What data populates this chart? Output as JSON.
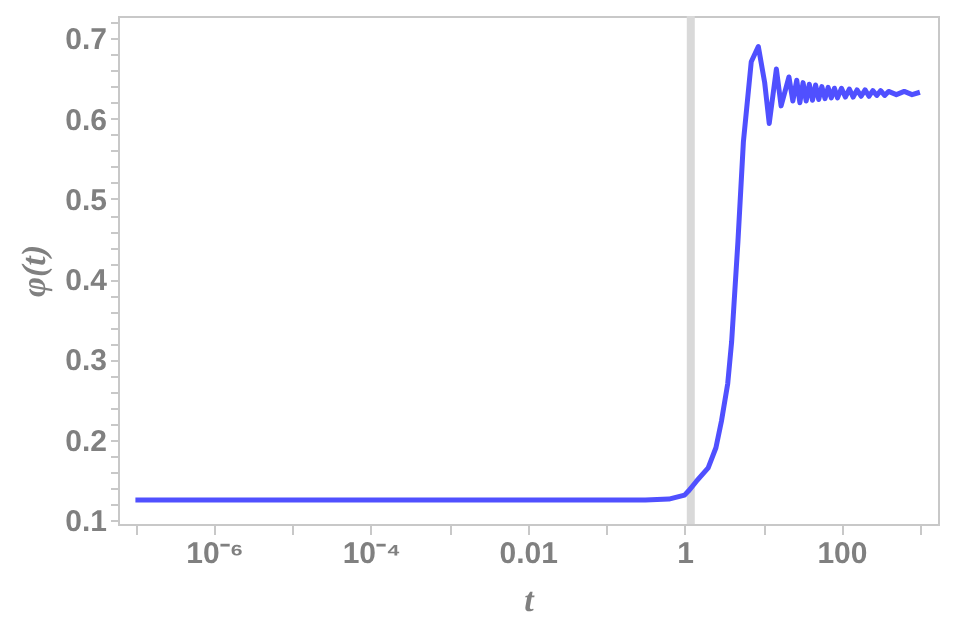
{
  "chart_data": {
    "type": "line",
    "xlabel": "t",
    "ylabel": "φ(t)",
    "log": "x",
    "x": [
      1e-07,
      1e-05,
      0.001,
      0.1,
      0.316,
      0.631,
      1,
      1.12,
      1.41,
      2.0,
      2.51,
      2.95,
      3.55,
      3.98,
      4.79,
      5.62,
      7.08,
      8.71,
      10.5,
      12.0,
      14.8,
      17.0,
      21.4,
      24.0,
      26.9,
      29.5,
      32.4,
      35.5,
      38.9,
      42.7,
      46.8,
      51.3,
      56.2,
      61.7,
      67.6,
      74.1,
      81.3,
      89.1,
      100,
      112,
      126,
      141,
      158,
      178,
      200,
      224,
      251,
      282,
      316,
      355,
      398,
      501,
      631,
      794,
      1000
    ],
    "series": [
      {
        "color": "#5050ff",
        "values": [
          0.125,
          0.125,
          0.125,
          0.125,
          0.125,
          0.126,
          0.131,
          0.136,
          0.148,
          0.165,
          0.19,
          0.223,
          0.27,
          0.322,
          0.447,
          0.571,
          0.671,
          0.69,
          0.645,
          0.594,
          0.662,
          0.616,
          0.652,
          0.622,
          0.648,
          0.62,
          0.645,
          0.622,
          0.643,
          0.623,
          0.642,
          0.624,
          0.64,
          0.625,
          0.639,
          0.626,
          0.638,
          0.626,
          0.638,
          0.627,
          0.637,
          0.627,
          0.636,
          0.628,
          0.636,
          0.628,
          0.635,
          0.629,
          0.635,
          0.629,
          0.634,
          0.63,
          0.634,
          0.63,
          0.633
        ]
      }
    ],
    "xlim": [
      6e-08,
      1700
    ],
    "xticks": [
      {
        "value": 1e-07,
        "label": null
      },
      {
        "value": 1e-06,
        "label": "10⁻⁶"
      },
      {
        "value": 1e-05,
        "label": null
      },
      {
        "value": 0.0001,
        "label": "10⁻⁴"
      },
      {
        "value": 0.001,
        "label": null
      },
      {
        "value": 0.01,
        "label": "0.01"
      },
      {
        "value": 0.1,
        "label": null
      },
      1,
      {
        "value": 10,
        "label": null
      },
      100,
      {
        "value": 1000,
        "label": null
      }
    ],
    "ylim": [
      0.095,
      0.728
    ],
    "yticks": [
      0.1,
      {
        "value": 0.12,
        "label": null
      },
      {
        "value": 0.14,
        "label": null
      },
      {
        "value": 0.16,
        "label": null
      },
      {
        "value": 0.18,
        "label": null
      },
      0.2,
      {
        "value": 0.22,
        "label": null
      },
      {
        "value": 0.24,
        "label": null
      },
      {
        "value": 0.26,
        "label": null
      },
      {
        "value": 0.28,
        "label": null
      },
      0.3,
      {
        "value": 0.32,
        "label": null
      },
      {
        "value": 0.34,
        "label": null
      },
      {
        "value": 0.36,
        "label": null
      },
      {
        "value": 0.38,
        "label": null
      },
      0.4,
      {
        "value": 0.42,
        "label": null
      },
      {
        "value": 0.44,
        "label": null
      },
      {
        "value": 0.46,
        "label": null
      },
      {
        "value": 0.48,
        "label": null
      },
      0.5,
      {
        "value": 0.52,
        "label": null
      },
      {
        "value": 0.54,
        "label": null
      },
      {
        "value": 0.56,
        "label": null
      },
      {
        "value": 0.58,
        "label": null
      },
      0.6,
      {
        "value": 0.62,
        "label": null
      },
      {
        "value": 0.64,
        "label": null
      },
      {
        "value": 0.66,
        "label": null
      },
      {
        "value": 0.68,
        "label": null
      },
      0.7,
      {
        "value": 0.72,
        "label": null
      }
    ],
    "ref_lines": [
      {
        "axis": "x",
        "value": 1.2,
        "color": "#d9d9d9"
      }
    ]
  }
}
